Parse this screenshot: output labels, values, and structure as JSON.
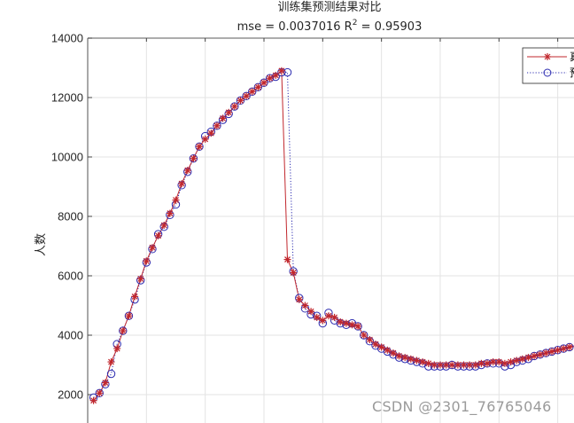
{
  "chart_data": {
    "type": "line",
    "title": "训练集预测结果对比",
    "subtitle": "mse = 0.0037016 R^2 = 0.95903",
    "subtitle_parts": {
      "prefix": "mse = 0.0037016 R",
      "sup": "2",
      "suffix": " = 0.95903"
    },
    "xlabel": "",
    "ylabel": "人数",
    "ylim": [
      1000,
      14000
    ],
    "yticks": [
      2000,
      4000,
      6000,
      8000,
      10000,
      12000,
      14000
    ],
    "ytick_labels": [
      "2000",
      "4000",
      "6000",
      "8000",
      "10000",
      "12000",
      "14000"
    ],
    "xlim": [
      0,
      83
    ],
    "grid": true,
    "legend_position": "northeast",
    "legend_entries_visible": [
      "真",
      "预"
    ],
    "x": [
      1,
      2,
      3,
      4,
      5,
      6,
      7,
      8,
      9,
      10,
      11,
      12,
      13,
      14,
      15,
      16,
      17,
      18,
      19,
      20,
      21,
      22,
      23,
      24,
      25,
      26,
      27,
      28,
      29,
      30,
      31,
      32,
      33,
      34,
      35,
      36,
      37,
      38,
      39,
      40,
      41,
      42,
      43,
      44,
      45,
      46,
      47,
      48,
      49,
      50,
      51,
      52,
      53,
      54,
      55,
      56,
      57,
      58,
      59,
      60,
      61,
      62,
      63,
      64,
      65,
      66,
      67,
      68,
      69,
      70,
      71,
      72,
      73,
      74,
      75,
      76,
      77,
      78,
      79,
      80,
      81,
      82,
      83
    ],
    "series": [
      {
        "name": "真实值",
        "color": "#c1272d",
        "line_style": "solid",
        "marker": "asterisk",
        "values": [
          1800,
          2050,
          2400,
          3100,
          3550,
          4150,
          4650,
          5300,
          5900,
          6500,
          6950,
          7350,
          7700,
          8100,
          8550,
          9100,
          9550,
          9950,
          10350,
          10600,
          10800,
          11050,
          11300,
          11500,
          11700,
          11900,
          12050,
          12200,
          12350,
          12500,
          12650,
          12750,
          12900,
          6550,
          6100,
          5200,
          5000,
          4800,
          4600,
          4500,
          4650,
          4600,
          4450,
          4400,
          4350,
          4300,
          4000,
          3850,
          3700,
          3600,
          3500,
          3400,
          3300,
          3250,
          3200,
          3150,
          3100,
          3050,
          3000,
          3000,
          3000,
          3000,
          3000,
          3000,
          3000,
          3000,
          3050,
          3050,
          3100,
          3100,
          3050,
          3100,
          3150,
          3200,
          3250,
          3300,
          3350,
          3400,
          3450,
          3500,
          3550,
          3600,
          3650
        ]
      },
      {
        "name": "预测值",
        "color": "#2b2bb0",
        "line_style": "dotted",
        "marker": "circle",
        "values": [
          1900,
          2050,
          2350,
          2700,
          3700,
          4150,
          4650,
          5200,
          5850,
          6450,
          6900,
          7400,
          7650,
          8050,
          8400,
          9050,
          9500,
          9950,
          10350,
          10700,
          10850,
          11050,
          11250,
          11450,
          11700,
          11900,
          12050,
          12200,
          12350,
          12500,
          12650,
          12700,
          12850,
          12850,
          6150,
          5250,
          4900,
          4700,
          4650,
          4400,
          4750,
          4500,
          4400,
          4350,
          4400,
          4300,
          4000,
          3800,
          3650,
          3550,
          3450,
          3350,
          3250,
          3200,
          3150,
          3100,
          3050,
          2950,
          2950,
          2950,
          2950,
          3000,
          2950,
          2950,
          2950,
          2950,
          3000,
          3050,
          3050,
          3050,
          2950,
          3000,
          3100,
          3150,
          3200,
          3300,
          3350,
          3400,
          3450,
          3500,
          3550,
          3600,
          3650
        ]
      }
    ]
  },
  "watermark": "CSDN @2301_76765046"
}
